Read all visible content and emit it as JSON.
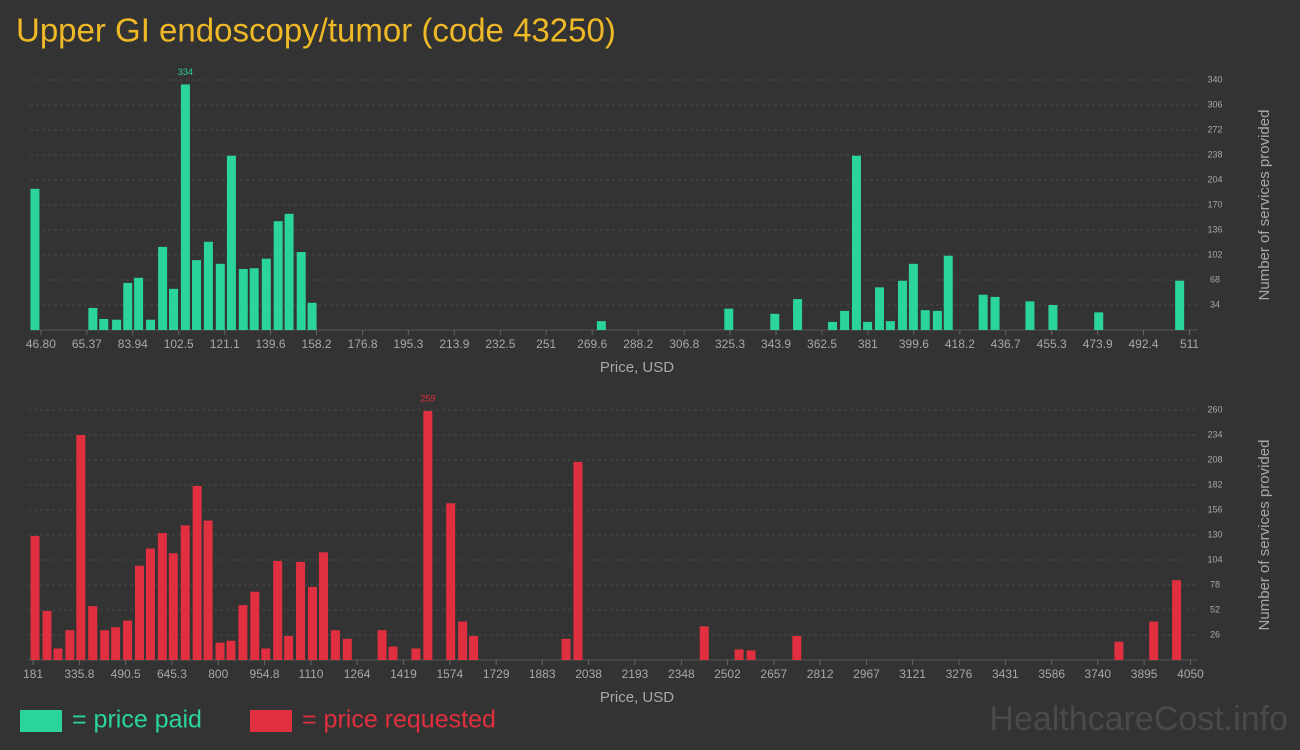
{
  "title": "Upper GI endoscopy/tumor (code 43250)",
  "watermark": "HealthcareCost.info",
  "legend": [
    {
      "label": "= price paid",
      "color": "#2ad49a"
    },
    {
      "label": "= price requested",
      "color": "#e0303f"
    }
  ],
  "chart_data": [
    {
      "type": "bar",
      "color": "#2ad49a",
      "xlabel": "Price, USD",
      "ylabel": "Number of services provided",
      "grid": true,
      "label_max": true,
      "xlim": [
        42.4,
        512
      ],
      "ylim": [
        0,
        340
      ],
      "yticks": [
        34,
        68,
        102,
        136,
        170,
        204,
        238,
        272,
        306,
        340
      ],
      "xticks": [
        {
          "value": 46.8,
          "label": "46.80"
        },
        65.37,
        83.94,
        102.5,
        121.1,
        139.6,
        158.2,
        176.8,
        195.3,
        213.9,
        232.5,
        251,
        269.6,
        288.2,
        306.8,
        325.3,
        343.9,
        362.5,
        381,
        399.6,
        418.2,
        436.7,
        455.3,
        473.9,
        492.4,
        511
      ],
      "x": [
        44.4,
        67.8,
        72.2,
        77.4,
        81.9,
        86.3,
        91.1,
        96.0,
        100.4,
        105.2,
        109.7,
        114.5,
        119.3,
        123.8,
        128.6,
        133.0,
        137.9,
        142.7,
        147.1,
        152.0,
        156.4,
        273.3,
        324.8,
        343.4,
        352.6,
        366.7,
        371.6,
        376.4,
        380.9,
        385.7,
        390.1,
        395.0,
        399.4,
        404.2,
        409.1,
        413.5,
        427.6,
        432.4,
        446.5,
        455.8,
        474.3,
        507.0
      ],
      "values": [
        192,
        30,
        15,
        14,
        64,
        71,
        14,
        113,
        56,
        334,
        95,
        120,
        90,
        237,
        83,
        84,
        97,
        148,
        158,
        106,
        37,
        12,
        29,
        22,
        42,
        11,
        26,
        237,
        11,
        58,
        12,
        67,
        90,
        27,
        26,
        101,
        48,
        45,
        39,
        34,
        24,
        67
      ]
    },
    {
      "type": "bar",
      "color": "#e0303f",
      "xlabel": "Price, USD",
      "ylabel": "Number of services provided",
      "grid": true,
      "label_max": true,
      "xlim": [
        164,
        4055
      ],
      "ylim": [
        0,
        260
      ],
      "yticks": [
        26,
        52,
        78,
        104,
        130,
        156,
        182,
        208,
        234,
        260
      ],
      "xticks": [
        181,
        335.8,
        490.5,
        645.3,
        800,
        954.8,
        1110,
        1264,
        1419,
        1574,
        1729,
        1883,
        2038,
        2193,
        2348,
        2502,
        2657,
        2812,
        2967,
        3121,
        3276,
        3431,
        3586,
        3740,
        3895,
        4050
      ],
      "x": [
        187.6,
        227.5,
        264.1,
        304.0,
        340.5,
        380.4,
        420.3,
        456.9,
        496.8,
        536.7,
        573.2,
        613.1,
        649.7,
        689.6,
        729.4,
        766.0,
        805.9,
        842.5,
        882.3,
        922.2,
        958.8,
        998.7,
        1035.2,
        1075.1,
        1115.0,
        1151.6,
        1191.5,
        1231.4,
        1347.7,
        1384.3,
        1460.7,
        1500.6,
        1577.0,
        1616.9,
        1653.5,
        1962.6,
        2002.5,
        2424.6,
        2541.0,
        2580.9,
        2733.8,
        3810.7,
        3927.0,
        4003.5
      ],
      "values": [
        129,
        51,
        12,
        31,
        234,
        56,
        31,
        34,
        41,
        98,
        116,
        132,
        111,
        140,
        181,
        145,
        18,
        20,
        57,
        71,
        12,
        103,
        25,
        102,
        76,
        112,
        31,
        22,
        31,
        14,
        12,
        259,
        163,
        40,
        25,
        22,
        206,
        35,
        11,
        10,
        25,
        19,
        40,
        83
      ]
    }
  ]
}
